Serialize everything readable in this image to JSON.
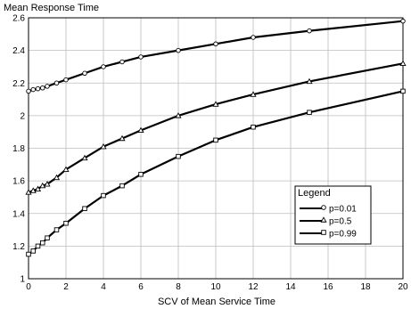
{
  "chart_data": {
    "type": "line",
    "xlabel": "SCV of Mean Service Time",
    "ylabel": "Mean Response Time",
    "xlim": [
      0,
      20
    ],
    "ylim": [
      1,
      2.6
    ],
    "xticks": [
      "0",
      "2",
      "4",
      "6",
      "8",
      "10",
      "12",
      "14",
      "16",
      "18",
      "20"
    ],
    "yticks": [
      "1",
      "1.2",
      "1.4",
      "1.6",
      "1.8",
      "2",
      "2.2",
      "2.4",
      "2.6"
    ],
    "grid": true,
    "legend": {
      "title": "Legend",
      "position": "right-lower"
    },
    "series": [
      {
        "name": "p=0.01",
        "marker": "circle",
        "x": [
          0,
          0.25,
          0.5,
          0.75,
          1,
          1.5,
          2,
          3,
          4,
          5,
          6,
          8,
          10,
          12,
          15,
          20
        ],
        "y": [
          2.15,
          2.16,
          2.165,
          2.17,
          2.18,
          2.2,
          2.22,
          2.26,
          2.3,
          2.33,
          2.36,
          2.4,
          2.44,
          2.48,
          2.52,
          2.58
        ]
      },
      {
        "name": "p=0.5",
        "marker": "triangle",
        "x": [
          0,
          0.25,
          0.5,
          0.75,
          1,
          1.5,
          2,
          3,
          4,
          5,
          6,
          8,
          10,
          12,
          15,
          20
        ],
        "y": [
          1.53,
          1.54,
          1.55,
          1.57,
          1.58,
          1.62,
          1.67,
          1.74,
          1.81,
          1.86,
          1.91,
          2.0,
          2.07,
          2.13,
          2.21,
          2.32
        ]
      },
      {
        "name": "p=0.99",
        "marker": "square",
        "x": [
          0,
          0.25,
          0.5,
          0.75,
          1,
          1.5,
          2,
          3,
          4,
          5,
          6,
          8,
          10,
          12,
          15,
          20
        ],
        "y": [
          1.15,
          1.17,
          1.2,
          1.22,
          1.25,
          1.3,
          1.34,
          1.43,
          1.51,
          1.57,
          1.64,
          1.75,
          1.85,
          1.93,
          2.02,
          2.15
        ]
      }
    ]
  }
}
